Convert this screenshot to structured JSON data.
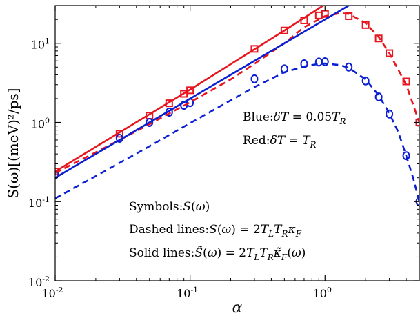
{
  "chart_data": {
    "type": "scatter",
    "title": "",
    "xlabel": "α",
    "ylabel": "S(ω)[(meV)²/ps]",
    "xscale": "log",
    "yscale": "log",
    "xlim": [
      0.01,
      5
    ],
    "ylim": [
      0.01,
      30
    ],
    "grid": false,
    "xticks": [
      {
        "value": 0.01,
        "label_base": "10",
        "label_exp": "-2"
      },
      {
        "value": 0.1,
        "label_base": "10",
        "label_exp": "-1"
      },
      {
        "value": 1,
        "label_base": "10",
        "label_exp": "0"
      }
    ],
    "yticks": [
      {
        "value": 0.01,
        "label_base": "10",
        "label_exp": "-2"
      },
      {
        "value": 0.1,
        "label_base": "10",
        "label_exp": "-1"
      },
      {
        "value": 1,
        "label_base": "10",
        "label_exp": "0"
      },
      {
        "value": 10,
        "label_base": "10",
        "label_exp": "1"
      }
    ],
    "annotations": [
      {
        "text": "Blue:δT = 0.05T_R",
        "position": "middle-right"
      },
      {
        "text": "Red:δT = T_R",
        "position": "middle-right"
      },
      {
        "text": "Symbols:S(ω)",
        "position": "bottom-center"
      },
      {
        "text": "Dashed lines:S(ω) = 2T_L T_R κ_F",
        "position": "bottom-center"
      },
      {
        "text": "Solid lines:S̃(ω) = 2T_L T_R κ̃_F(ω)",
        "position": "bottom-center"
      }
    ],
    "colors": {
      "blue": "#0a1ed2",
      "red": "#e8141e"
    },
    "series": [
      {
        "color": "red",
        "style": "squares",
        "points": [
          [
            0.01,
            0.24
          ],
          [
            0.03,
            0.72
          ],
          [
            0.05,
            1.22
          ],
          [
            0.07,
            1.75
          ],
          [
            0.09,
            2.3
          ],
          [
            0.1,
            2.55
          ],
          [
            0.3,
            8.5
          ],
          [
            0.5,
            14.5
          ],
          [
            0.7,
            19.5
          ],
          [
            0.9,
            22.5
          ],
          [
            1.0,
            23.5
          ],
          [
            1.5,
            22.0
          ],
          [
            2.0,
            17.0
          ],
          [
            2.5,
            11.5
          ],
          [
            3.0,
            7.5
          ],
          [
            4.0,
            3.3
          ],
          [
            5.0,
            1.0
          ]
        ]
      },
      {
        "color": "blue",
        "style": "circles",
        "points": [
          [
            0.01,
            0.22
          ],
          [
            0.03,
            0.63
          ],
          [
            0.05,
            1.0
          ],
          [
            0.07,
            1.35
          ],
          [
            0.09,
            1.65
          ],
          [
            0.1,
            1.78
          ],
          [
            0.3,
            3.55
          ],
          [
            0.5,
            4.75
          ],
          [
            0.7,
            5.5
          ],
          [
            0.9,
            5.8
          ],
          [
            1.0,
            5.85
          ],
          [
            1.5,
            5.0
          ],
          [
            2.0,
            3.35
          ],
          [
            2.5,
            2.1
          ],
          [
            3.0,
            1.28
          ],
          [
            4.0,
            0.38
          ],
          [
            5.0,
            0.1
          ]
        ]
      },
      {
        "color": "red",
        "style": "dashed",
        "points": [
          [
            0.01,
            0.23
          ],
          [
            0.02,
            0.42
          ],
          [
            0.03,
            0.6
          ],
          [
            0.05,
            0.95
          ],
          [
            0.07,
            1.3
          ],
          [
            0.1,
            1.8
          ],
          [
            0.2,
            3.5
          ],
          [
            0.3,
            5.5
          ],
          [
            0.5,
            10.0
          ],
          [
            0.7,
            16.0
          ],
          [
            1.0,
            22.0
          ],
          [
            1.3,
            24.0
          ],
          [
            1.5,
            23.5
          ],
          [
            2.0,
            18.0
          ],
          [
            2.5,
            12.0
          ],
          [
            3.0,
            7.5
          ],
          [
            4.0,
            3.0
          ],
          [
            5.0,
            1.0
          ]
        ]
      },
      {
        "color": "red",
        "style": "solid",
        "points": [
          [
            0.01,
            0.24
          ],
          [
            0.1,
            2.6
          ],
          [
            0.5,
            14.5
          ],
          [
            1.0,
            31.0
          ]
        ]
      },
      {
        "color": "blue",
        "style": "dashed",
        "points": [
          [
            0.01,
            0.11
          ],
          [
            0.02,
            0.21
          ],
          [
            0.05,
            0.5
          ],
          [
            0.1,
            0.98
          ],
          [
            0.2,
            1.9
          ],
          [
            0.3,
            2.8
          ],
          [
            0.5,
            4.3
          ],
          [
            0.7,
            5.1
          ],
          [
            0.9,
            5.5
          ],
          [
            1.0,
            5.55
          ],
          [
            1.3,
            5.3
          ],
          [
            1.5,
            4.9
          ],
          [
            2.0,
            3.5
          ],
          [
            2.5,
            2.2
          ],
          [
            3.0,
            1.3
          ],
          [
            3.5,
            0.75
          ],
          [
            4.0,
            0.38
          ],
          [
            4.5,
            0.2
          ],
          [
            5.0,
            0.1
          ]
        ]
      },
      {
        "color": "blue",
        "style": "solid",
        "points": [
          [
            0.01,
            0.2
          ],
          [
            0.1,
            2.0
          ],
          [
            1.0,
            20.0
          ],
          [
            1.5,
            30.0
          ]
        ]
      }
    ]
  }
}
